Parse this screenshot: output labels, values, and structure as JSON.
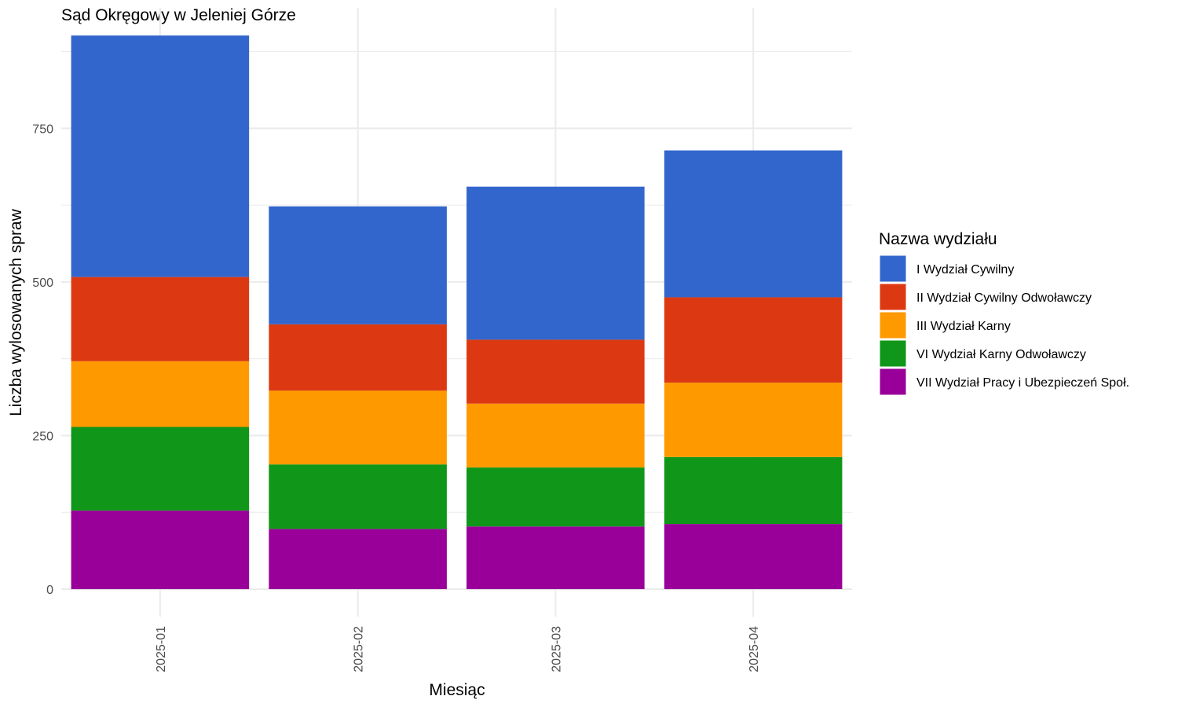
{
  "chart_data": {
    "type": "bar",
    "stacked": true,
    "title": "Sąd Okręgowy w Jeleniej Górze",
    "xlabel": "Miesiąc",
    "ylabel": "Liczba wylosowanych spraw",
    "categories": [
      "2025-01",
      "2025-02",
      "2025-03",
      "2025-04"
    ],
    "ylim": [
      0,
      900
    ],
    "yticks": [
      0,
      250,
      500,
      750
    ],
    "grid": true,
    "legend_title": "Nazwa wydziału",
    "legend_position": "right",
    "series": [
      {
        "name": "I Wydział Cywilny",
        "color": "#3366CC",
        "values": [
          393,
          192,
          249,
          239
        ]
      },
      {
        "name": "II Wydział Cywilny Odwoławczy",
        "color": "#DC3912",
        "values": [
          137,
          108,
          104,
          139
        ]
      },
      {
        "name": "III Wydział Karny",
        "color": "#FF9900",
        "values": [
          107,
          120,
          104,
          121
        ]
      },
      {
        "name": "VI Wydział Karny Odwoławczy",
        "color": "#109618",
        "values": [
          136,
          105,
          96,
          109
        ]
      },
      {
        "name": "VII Wydział Pracy i Ubezpieczeń Społ.",
        "color": "#990099",
        "values": [
          128,
          98,
          102,
          106
        ]
      }
    ]
  }
}
